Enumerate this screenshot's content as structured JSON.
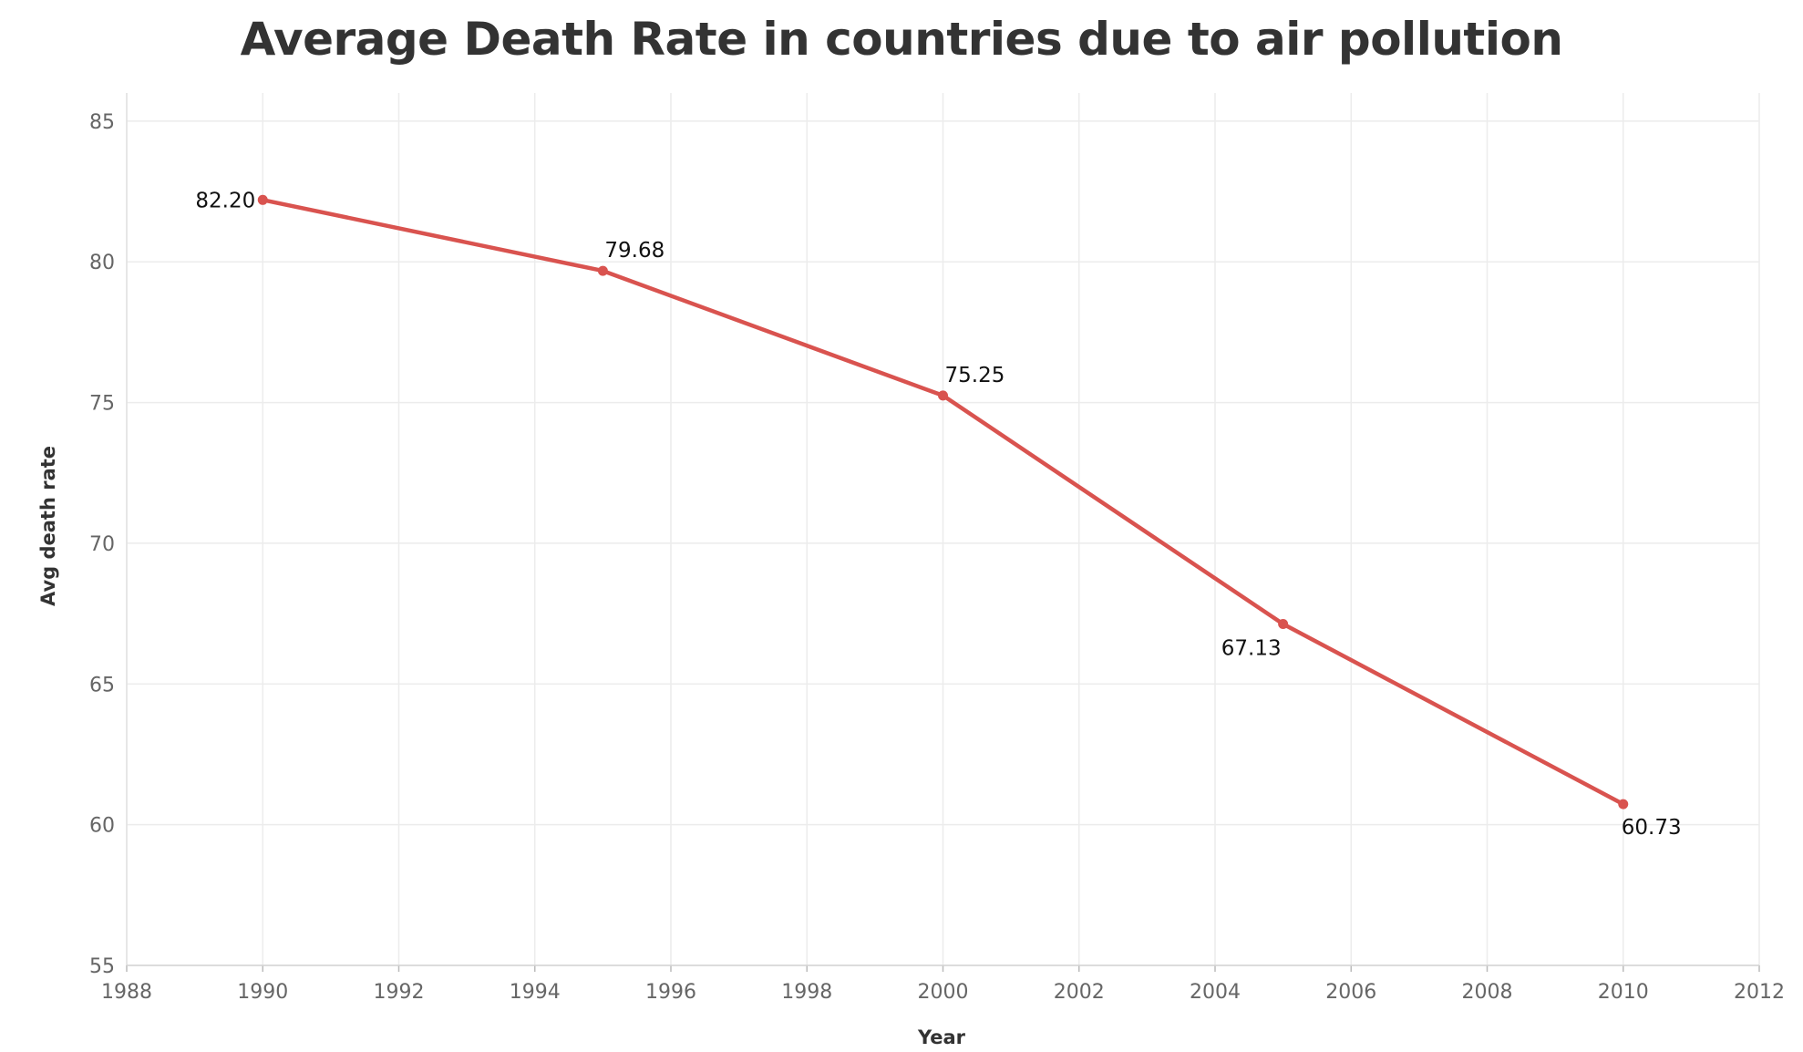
{
  "chart_data": {
    "type": "line",
    "title": "Average Death Rate in countries due to air pollution",
    "xlabel": "Year",
    "ylabel": "Avg death rate",
    "xlim": [
      1988,
      2012
    ],
    "ylim": [
      55,
      86
    ],
    "x_ticks": [
      1988,
      1990,
      1992,
      1994,
      1996,
      1998,
      2000,
      2002,
      2004,
      2006,
      2008,
      2010,
      2012
    ],
    "y_ticks": [
      55,
      60,
      65,
      70,
      75,
      80,
      85
    ],
    "grid": true,
    "legend": "none",
    "series": [
      {
        "color": "#d9534f",
        "x": [
          1990,
          1995,
          2000,
          2005,
          2010
        ],
        "values": [
          82.2,
          79.68,
          75.25,
          67.13,
          60.73
        ],
        "labels": [
          "82.20",
          "79.68",
          "75.25",
          "67.13",
          "60.73"
        ]
      }
    ]
  }
}
